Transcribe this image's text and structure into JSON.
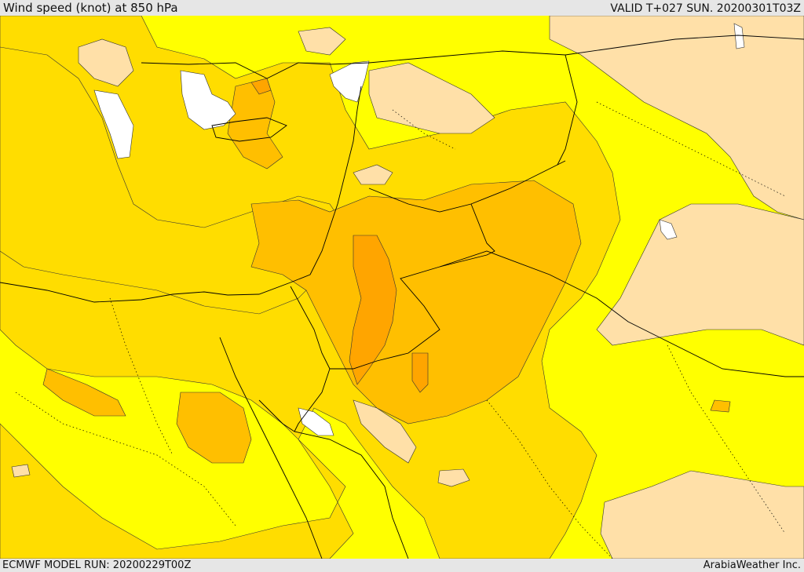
{
  "header": {
    "title": "Wind speed (knot) at 850 hPa",
    "valid": "VALID T+027 SUN. 20200301T03Z"
  },
  "footer": {
    "model_run": "ECMWF MODEL RUN: 20200229T00Z",
    "credit": "ArabiaWeather Inc."
  },
  "colors": {
    "very_low": "#ffffff",
    "low": "#ffe0a8",
    "mid": "#ffff00",
    "high": "#ffdd00",
    "higher": "#ffbf00",
    "highest": "#ffa500",
    "border": "#000000"
  }
}
